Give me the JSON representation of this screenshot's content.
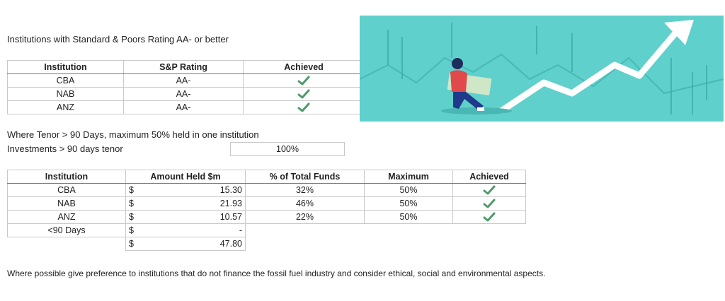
{
  "heading": "Institutions with Standard & Poors Rating AA- or better",
  "rating_table": {
    "headers": [
      "Institution",
      "S&P Rating",
      "Achieved"
    ],
    "rows": [
      [
        "CBA",
        "AA-"
      ],
      [
        "NAB",
        "AA-"
      ],
      [
        "ANZ",
        "AA-"
      ]
    ]
  },
  "tenor_rule": "Where Tenor > 90 Days, maximum 50% held in one institution",
  "investments": {
    "label": "Investments > 90 days tenor",
    "value": "100%"
  },
  "holdings_table": {
    "headers": [
      "Institution",
      "Amount Held $m",
      "% of Total Funds",
      "Maximum",
      "Achieved"
    ],
    "rows": [
      [
        "CBA",
        "$",
        "15.30",
        "32%",
        "50%"
      ],
      [
        "NAB",
        "$",
        "21.93",
        "46%",
        "50%"
      ],
      [
        "ANZ",
        "$",
        "10.57",
        "22%",
        "50%"
      ],
      [
        "<90 Days",
        "$",
        "-"
      ]
    ],
    "total": {
      "currency": "$",
      "amount": "47.80"
    }
  },
  "note": "Where possible give preference to institutions that do not finance the fossil fuel industry and consider ethical, social and environmental aspects."
}
